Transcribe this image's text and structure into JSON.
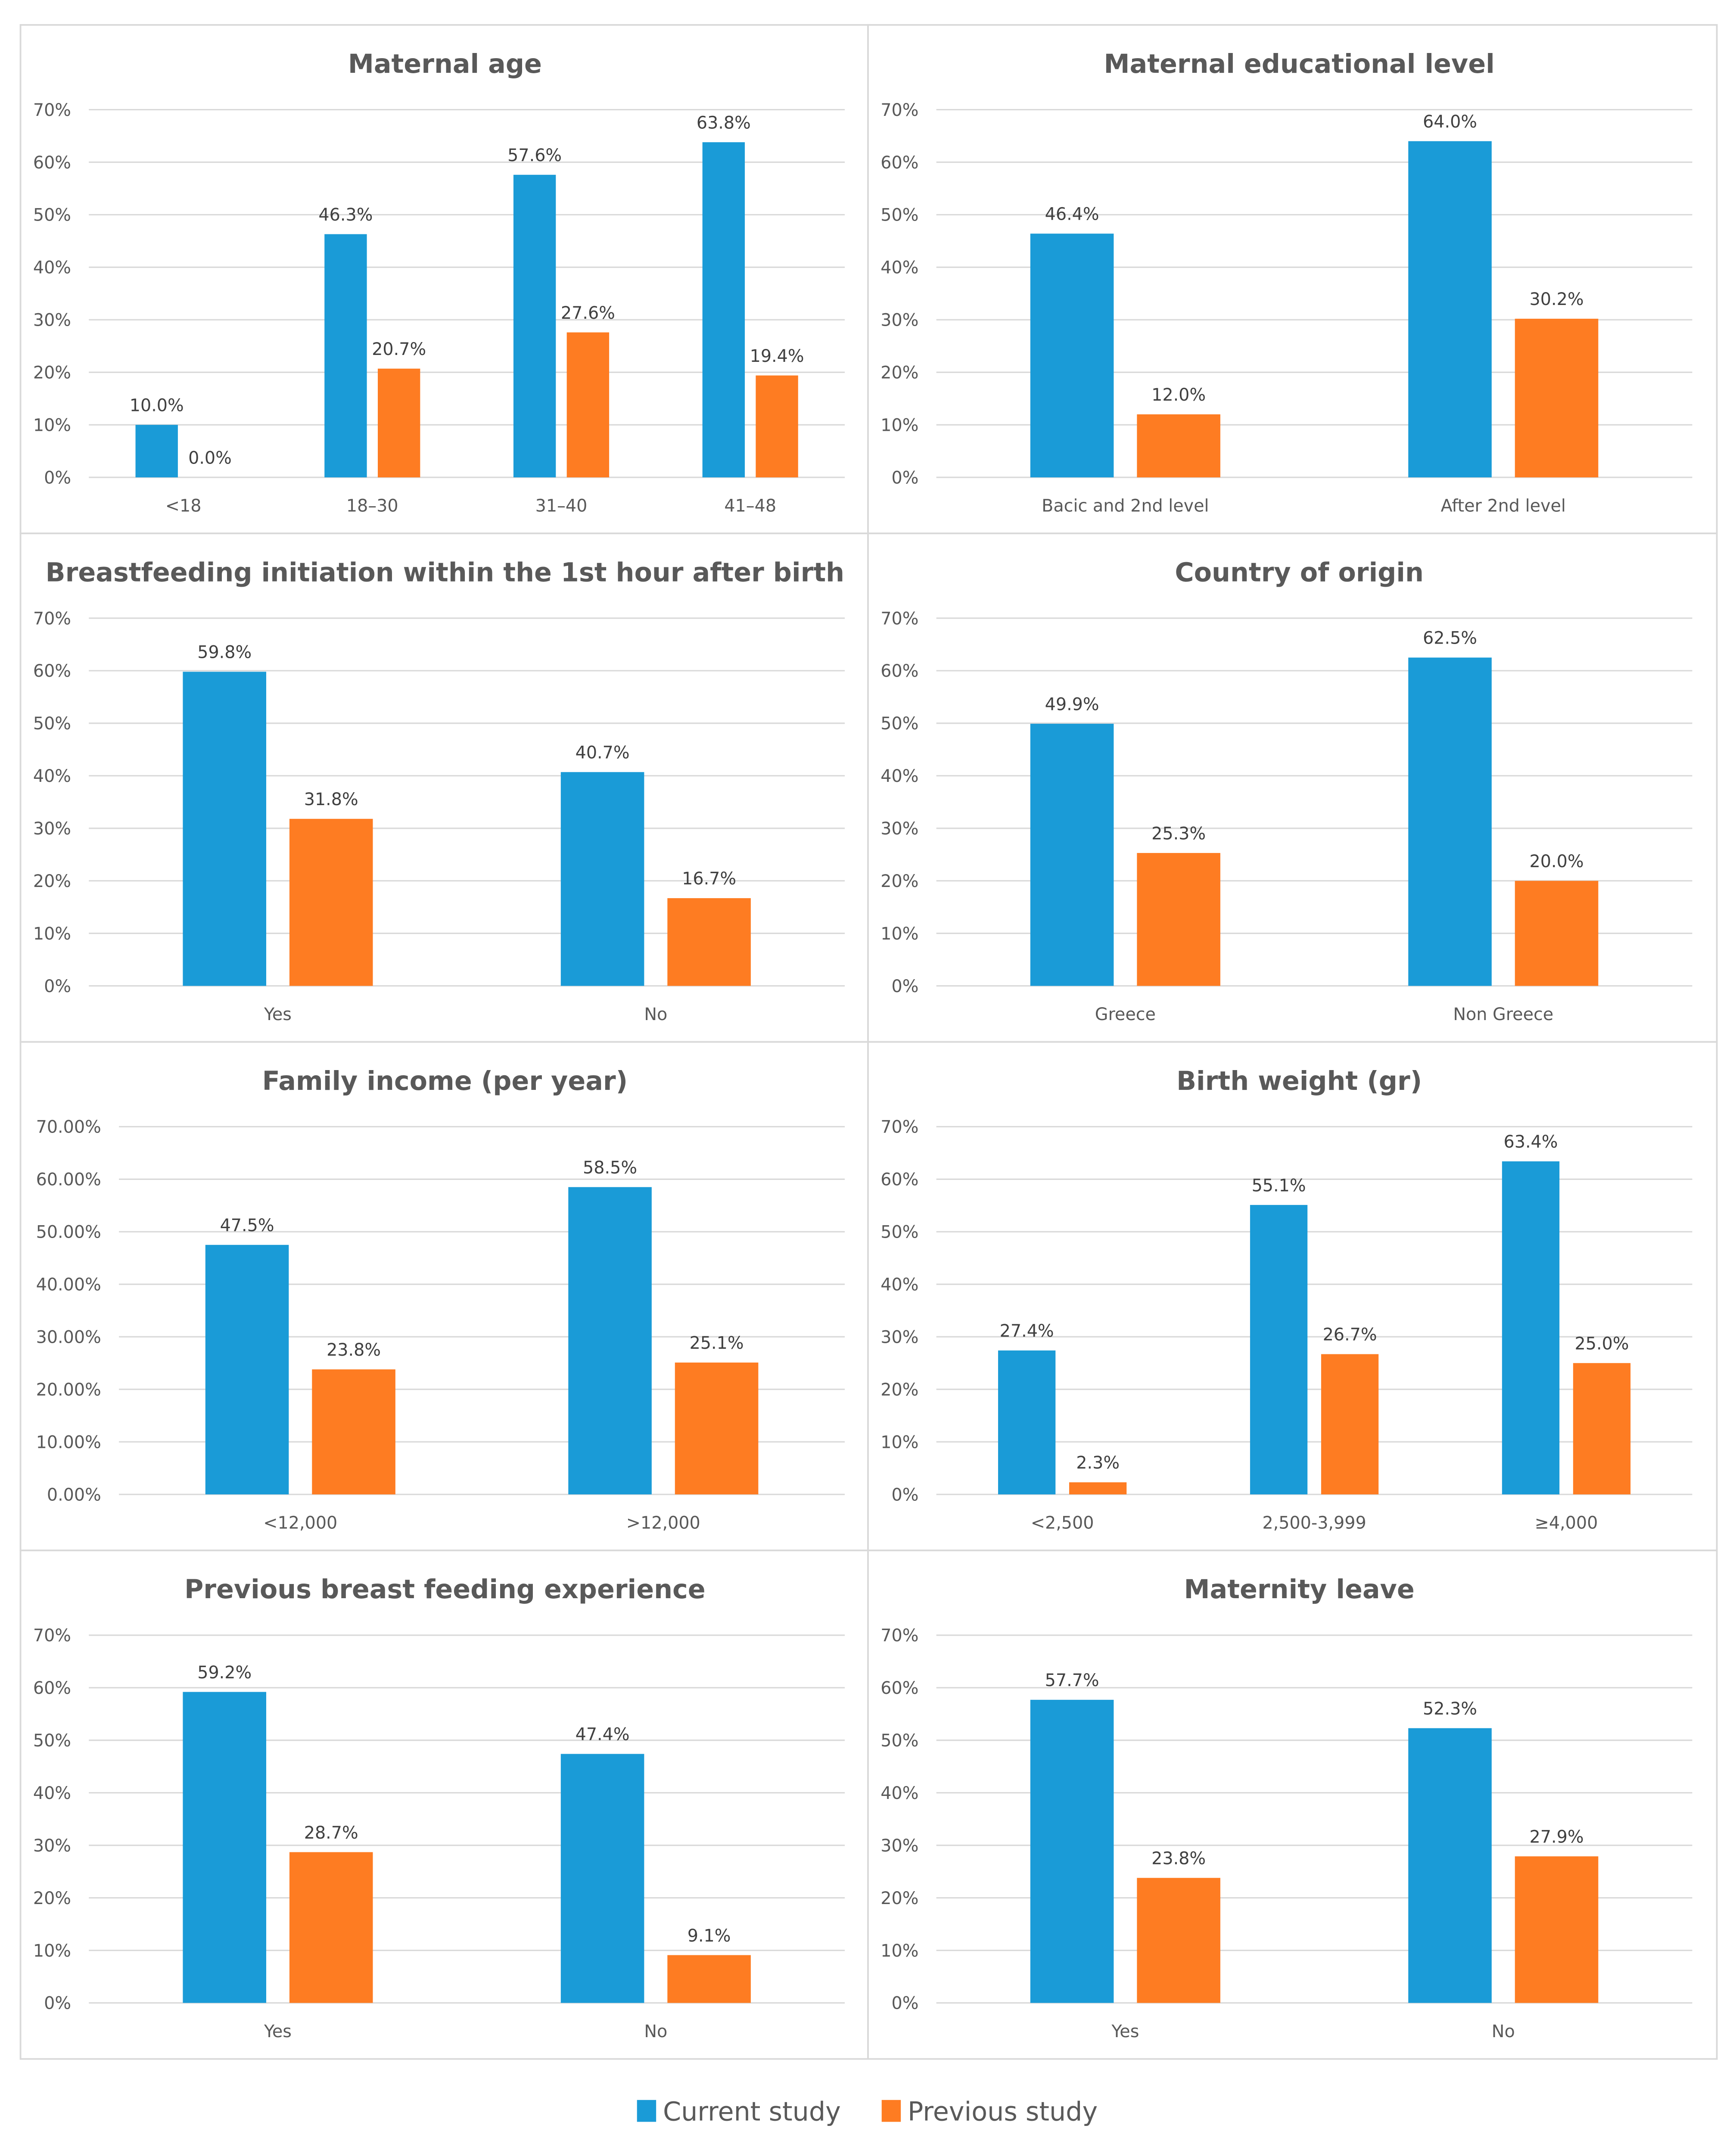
{
  "colors": {
    "current": "#1a9bd7",
    "previous": "#fe7c22"
  },
  "legend": {
    "current_label": "Current study",
    "previous_label": "Previous study"
  },
  "chart_data": [
    {
      "type": "bar",
      "title": "Maternal age",
      "categories": [
        "<18",
        "18–30",
        "31–40",
        "41–48"
      ],
      "series": [
        {
          "name": "Current study",
          "values": [
            10.0,
            46.3,
            57.6,
            63.8
          ],
          "labels": [
            "10.0%",
            "46.3%",
            "57.6%",
            "63.8%"
          ]
        },
        {
          "name": "Previous study",
          "values": [
            0.0,
            20.7,
            27.6,
            19.4
          ],
          "labels": [
            "0.0%",
            "20.7%",
            "27.6%",
            "19.4%"
          ]
        }
      ],
      "ylim": [
        0,
        70
      ],
      "yticks": [
        "0%",
        "10%",
        "20%",
        "30%",
        "40%",
        "50%",
        "60%",
        "70%"
      ],
      "grid": true
    },
    {
      "type": "bar",
      "title": "Maternal educational level",
      "categories": [
        "Bacic and 2nd level",
        "After 2nd level"
      ],
      "series": [
        {
          "name": "Current study",
          "values": [
            46.4,
            64.0
          ],
          "labels": [
            "46.4%",
            "64.0%"
          ]
        },
        {
          "name": "Previous study",
          "values": [
            12.0,
            30.2
          ],
          "labels": [
            "12.0%",
            "30.2%"
          ]
        }
      ],
      "ylim": [
        0,
        70
      ],
      "yticks": [
        "0%",
        "10%",
        "20%",
        "30%",
        "40%",
        "50%",
        "60%",
        "70%"
      ],
      "grid": true
    },
    {
      "type": "bar",
      "title": "Breastfeeding initiation within the 1st hour after birth",
      "categories": [
        "Yes",
        "No"
      ],
      "series": [
        {
          "name": "Current study",
          "values": [
            59.8,
            40.7
          ],
          "labels": [
            "59.8%",
            "40.7%"
          ]
        },
        {
          "name": "Previous study",
          "values": [
            31.8,
            16.7
          ],
          "labels": [
            "31.8%",
            "16.7%"
          ]
        }
      ],
      "ylim": [
        0,
        70
      ],
      "yticks": [
        "0%",
        "10%",
        "20%",
        "30%",
        "40%",
        "50%",
        "60%",
        "70%"
      ],
      "grid": true
    },
    {
      "type": "bar",
      "title": "Country of origin",
      "categories": [
        "Greece",
        "Non Greece"
      ],
      "series": [
        {
          "name": "Current study",
          "values": [
            49.9,
            62.5
          ],
          "labels": [
            "49.9%",
            "62.5%"
          ]
        },
        {
          "name": "Previous study",
          "values": [
            25.3,
            20.0
          ],
          "labels": [
            "25.3%",
            "20.0%"
          ]
        }
      ],
      "ylim": [
        0,
        70
      ],
      "yticks": [
        "0%",
        "10%",
        "20%",
        "30%",
        "40%",
        "50%",
        "60%",
        "70%"
      ],
      "grid": true
    },
    {
      "type": "bar",
      "title": "Family income (per year)",
      "categories": [
        "<12,000",
        ">12,000"
      ],
      "series": [
        {
          "name": "Current study",
          "values": [
            47.5,
            58.5
          ],
          "labels": [
            "47.5%",
            "58.5%"
          ]
        },
        {
          "name": "Previous study",
          "values": [
            23.8,
            25.1
          ],
          "labels": [
            "23.8%",
            "25.1%"
          ]
        }
      ],
      "ylim": [
        0,
        70
      ],
      "yticks": [
        "0.00%",
        "10.00%",
        "20.00%",
        "30.00%",
        "40.00%",
        "50.00%",
        "60.00%",
        "70.00%"
      ],
      "grid": true
    },
    {
      "type": "bar",
      "title": "Birth weight (gr)",
      "categories": [
        "<2,500",
        "2,500-3,999",
        "≥4,000"
      ],
      "series": [
        {
          "name": "Current study",
          "values": [
            27.4,
            55.1,
            63.4
          ],
          "labels": [
            "27.4%",
            "55.1%",
            "63.4%"
          ]
        },
        {
          "name": "Previous study",
          "values": [
            2.3,
            26.7,
            25.0
          ],
          "labels": [
            "2.3%",
            "26.7%",
            "25.0%"
          ]
        }
      ],
      "ylim": [
        0,
        70
      ],
      "yticks": [
        "0%",
        "10%",
        "20%",
        "30%",
        "40%",
        "50%",
        "60%",
        "70%"
      ],
      "grid": true
    },
    {
      "type": "bar",
      "title": "Previous breast feeding experience",
      "categories": [
        "Yes",
        "No"
      ],
      "series": [
        {
          "name": "Current study",
          "values": [
            59.2,
            47.4
          ],
          "labels": [
            "59.2%",
            "47.4%"
          ]
        },
        {
          "name": "Previous study",
          "values": [
            28.7,
            9.1
          ],
          "labels": [
            "28.7%",
            "9.1%"
          ]
        }
      ],
      "ylim": [
        0,
        70
      ],
      "yticks": [
        "0%",
        "10%",
        "20%",
        "30%",
        "40%",
        "50%",
        "60%",
        "70%"
      ],
      "grid": true
    },
    {
      "type": "bar",
      "title": "Maternity leave",
      "categories": [
        "Yes",
        "No"
      ],
      "series": [
        {
          "name": "Current study",
          "values": [
            57.7,
            52.3
          ],
          "labels": [
            "57.7%",
            "52.3%"
          ]
        },
        {
          "name": "Previous study",
          "values": [
            23.8,
            27.9
          ],
          "labels": [
            "23.8%",
            "27.9%"
          ]
        }
      ],
      "ylim": [
        0,
        70
      ],
      "yticks": [
        "0%",
        "10%",
        "20%",
        "30%",
        "40%",
        "50%",
        "60%",
        "70%"
      ],
      "grid": true
    }
  ]
}
